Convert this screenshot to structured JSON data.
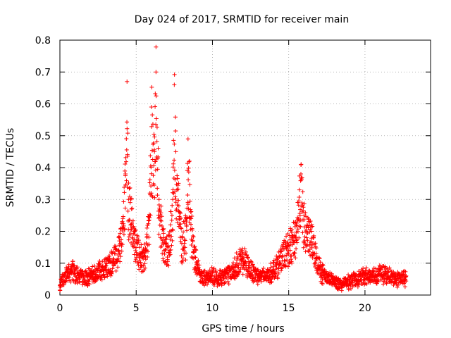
{
  "chart_data": {
    "type": "scatter",
    "title": "Day 024 of 2017, SRMTID for receiver main",
    "xlabel": "GPS time / hours",
    "ylabel": "SRMTID / TECUs",
    "xlim": [
      0,
      24.3
    ],
    "ylim": [
      0,
      0.8
    ],
    "xticks": [
      0,
      5,
      10,
      15,
      20
    ],
    "xtick_labels": [
      "0",
      "5",
      "10",
      "15",
      "20"
    ],
    "yticks": [
      0,
      0.1,
      0.2,
      0.3,
      0.4,
      0.5,
      0.6,
      0.7,
      0.8
    ],
    "ytick_labels": [
      "0",
      "0.1",
      "0.2",
      "0.3",
      "0.4",
      "0.5",
      "0.6",
      "0.7",
      "0.8"
    ],
    "grid": true,
    "marker": "+",
    "marker_color": "#ff0000",
    "series": [
      {
        "name": "SRMTID",
        "points_note": "approximate envelope of ~3000 plus-marker samples, 30 s cadence",
        "x": [
          0.0,
          0.1,
          0.3,
          0.5,
          0.8,
          1.0,
          1.3,
          1.6,
          2.0,
          2.3,
          2.6,
          3.0,
          3.3,
          3.6,
          3.9,
          4.1,
          4.3,
          4.4,
          4.5,
          4.7,
          4.9,
          5.1,
          5.3,
          5.6,
          5.9,
          6.0,
          6.2,
          6.3,
          6.5,
          6.8,
          7.1,
          7.4,
          7.5,
          7.6,
          7.8,
          8.0,
          8.3,
          8.4,
          8.6,
          8.8,
          9.0,
          9.3,
          9.6,
          10.0,
          10.4,
          10.8,
          11.2,
          11.6,
          12.0,
          12.4,
          12.8,
          13.2,
          13.6,
          14.0,
          14.4,
          14.8,
          15.2,
          15.5,
          15.7,
          15.8,
          16.0,
          16.2,
          16.5,
          16.8,
          17.2,
          17.6,
          18.0,
          18.5,
          19.0,
          19.5,
          20.0,
          20.5,
          21.0,
          21.5,
          22.0,
          22.4,
          22.7
        ],
        "y": [
          0.03,
          0.05,
          0.06,
          0.08,
          0.09,
          0.08,
          0.07,
          0.06,
          0.07,
          0.08,
          0.09,
          0.1,
          0.11,
          0.13,
          0.17,
          0.21,
          0.38,
          0.67,
          0.3,
          0.27,
          0.2,
          0.16,
          0.13,
          0.14,
          0.32,
          0.59,
          0.45,
          0.7,
          0.3,
          0.18,
          0.15,
          0.3,
          0.66,
          0.45,
          0.28,
          0.18,
          0.22,
          0.49,
          0.24,
          0.15,
          0.1,
          0.07,
          0.06,
          0.07,
          0.06,
          0.07,
          0.08,
          0.11,
          0.13,
          0.1,
          0.08,
          0.07,
          0.07,
          0.09,
          0.12,
          0.16,
          0.18,
          0.22,
          0.33,
          0.38,
          0.25,
          0.22,
          0.2,
          0.13,
          0.08,
          0.06,
          0.05,
          0.04,
          0.05,
          0.06,
          0.07,
          0.07,
          0.08,
          0.07,
          0.06,
          0.06,
          0.06
        ]
      }
    ]
  }
}
